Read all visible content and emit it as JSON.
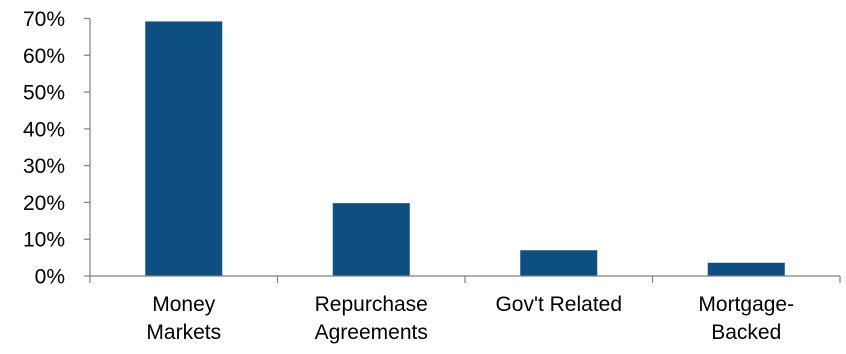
{
  "chart_data": {
    "type": "bar",
    "title": "",
    "xlabel": "",
    "ylabel": "",
    "categories": [
      [
        "Money",
        "Markets"
      ],
      [
        "Repurchase",
        "Agreements"
      ],
      [
        "Gov't Related"
      ],
      [
        "Mortgage-",
        "Backed"
      ]
    ],
    "values": [
      69.2,
      19.8,
      7.0,
      3.6
    ],
    "ylim": [
      0,
      70
    ],
    "yticks": [
      "0%",
      "10%",
      "20%",
      "30%",
      "40%",
      "50%",
      "60%",
      "70%"
    ],
    "ytick_values": [
      0,
      10,
      20,
      30,
      40,
      50,
      60,
      70
    ],
    "bar_color": "#0e4f82",
    "axis_color": "#808080",
    "grid": false,
    "legend": "none"
  }
}
